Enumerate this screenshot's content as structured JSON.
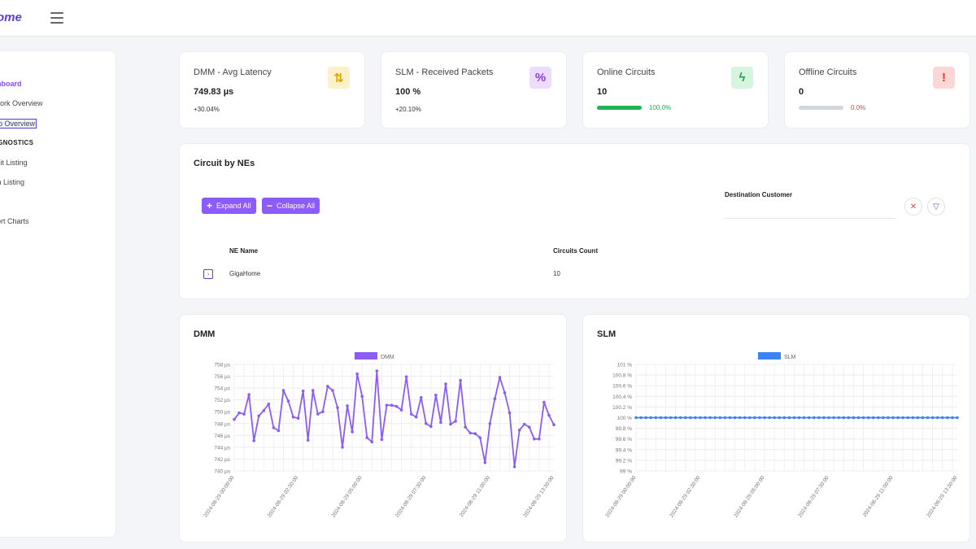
{
  "header": {
    "logo_text": "ome"
  },
  "sidebar": {
    "items": [
      {
        "label": "shboard",
        "active": true
      },
      {
        "label": "twork Overview"
      },
      {
        "label": "ap Overview",
        "boxed": true
      }
    ],
    "section": "AGNOSTICS",
    "diag_items": [
      {
        "label": "cuit Listing"
      },
      {
        "label": "rm Listing"
      }
    ],
    "extra_items": [
      {
        "label": "port Charts"
      }
    ]
  },
  "kpis": [
    {
      "title": "DMM - Avg Latency",
      "value": "749.83 µs",
      "delta": "+30.04%",
      "icon": "arrows-up-down-icon",
      "icon_glyph": "⇅",
      "icon_bg": "#fdf1c9",
      "icon_color": "#d9a400"
    },
    {
      "title": "SLM - Received Packets",
      "value": "100 %",
      "delta": "+20.10%",
      "icon": "percent-icon",
      "icon_glyph": "%",
      "icon_bg": "#ecdcff",
      "icon_color": "#8b3fe0"
    },
    {
      "title": "Online Circuits",
      "value": "10",
      "progress_label": "100.0%",
      "progress": 1.0,
      "bar_color": "#21b35a",
      "label_color": "#21b35a",
      "icon": "lightning-icon",
      "icon_glyph": "ϟ",
      "icon_bg": "#d6f5de",
      "icon_color": "#21a356"
    },
    {
      "title": "Offline Circuits",
      "value": "0",
      "progress_label": "0.0%",
      "progress": 0.0,
      "bar_color": "#d2d6e2",
      "label_color": "#e04444",
      "icon": "alert-circle-icon",
      "icon_glyph": "!",
      "icon_bg": "#fdd6d6",
      "icon_color": "#e03b3b"
    }
  ],
  "circuits": {
    "title": "Circuit by NEs",
    "expand_label": "Expand All",
    "collapse_label": "Collapse All",
    "filter_label": "Destination Customer",
    "filter_value": "",
    "columns": [
      "NE Name",
      "Circuits Count"
    ],
    "rows": [
      {
        "ne": "GigaHome",
        "count": "10"
      }
    ]
  },
  "dmm_chart": {
    "section_title": "DMM",
    "chart_data": {
      "type": "line",
      "legend": "DMM",
      "color": "#8b5cf6",
      "y_ticks": [
        "758 µs",
        "756 µs",
        "754 µs",
        "752 µs",
        "750 µs",
        "748 µs",
        "746 µs",
        "744 µs",
        "742 µs",
        "740 µs"
      ],
      "ylim": [
        740,
        758
      ],
      "x_ticks": [
        "2024-08-29 00:00:00",
        "2024-08-29 02:30:00",
        "2024-08-29 05:00:00",
        "2024-08-29 07:30:00",
        "2024-08-29 11:00:00",
        "2024-08-29 13:30:00"
      ],
      "values": [
        748.7,
        749.8,
        749.6,
        752.9,
        745.1,
        749.3,
        750.2,
        751.3,
        747.3,
        746.8,
        753.6,
        751.8,
        749.1,
        748.9,
        753.5,
        745.2,
        753.6,
        749.6,
        750.0,
        754.3,
        753.6,
        750.7,
        744.0,
        751.0,
        746.6,
        756.4,
        752.6,
        745.6,
        744.9,
        756.9,
        745.3,
        751.1,
        751.1,
        750.9,
        750.3,
        755.9,
        749.6,
        749.1,
        752.4,
        748.0,
        747.5,
        752.8,
        748.2,
        754.7,
        747.9,
        748.4,
        755.3,
        747.4,
        746.4,
        746.3,
        745.6,
        741.4,
        748.0,
        752.2,
        755.8,
        753.2,
        749.8,
        740.7,
        746.9,
        747.9,
        747.4,
        745.4,
        745.4,
        751.6,
        749.4,
        747.8
      ]
    }
  },
  "slm_chart": {
    "section_title": "SLM",
    "chart_data": {
      "type": "line",
      "legend": "SLM",
      "color": "#3b82f6",
      "y_ticks": [
        "101 %",
        "100.8 %",
        "100.6 %",
        "100.4 %",
        "100.2 %",
        "100 %",
        "99.8 %",
        "99.6 %",
        "99.4 %",
        "99.2 %",
        "99 %"
      ],
      "ylim": [
        99,
        101
      ],
      "x_ticks": [
        "2024-08-29 00:00:00",
        "2024-08-29 02:30:00",
        "2024-08-29 05:00:00",
        "2024-08-29 07:30:00",
        "2024-08-29 11:00:00",
        "2024-08-29 13:30:00"
      ],
      "value": 100,
      "point_count": 66
    }
  }
}
